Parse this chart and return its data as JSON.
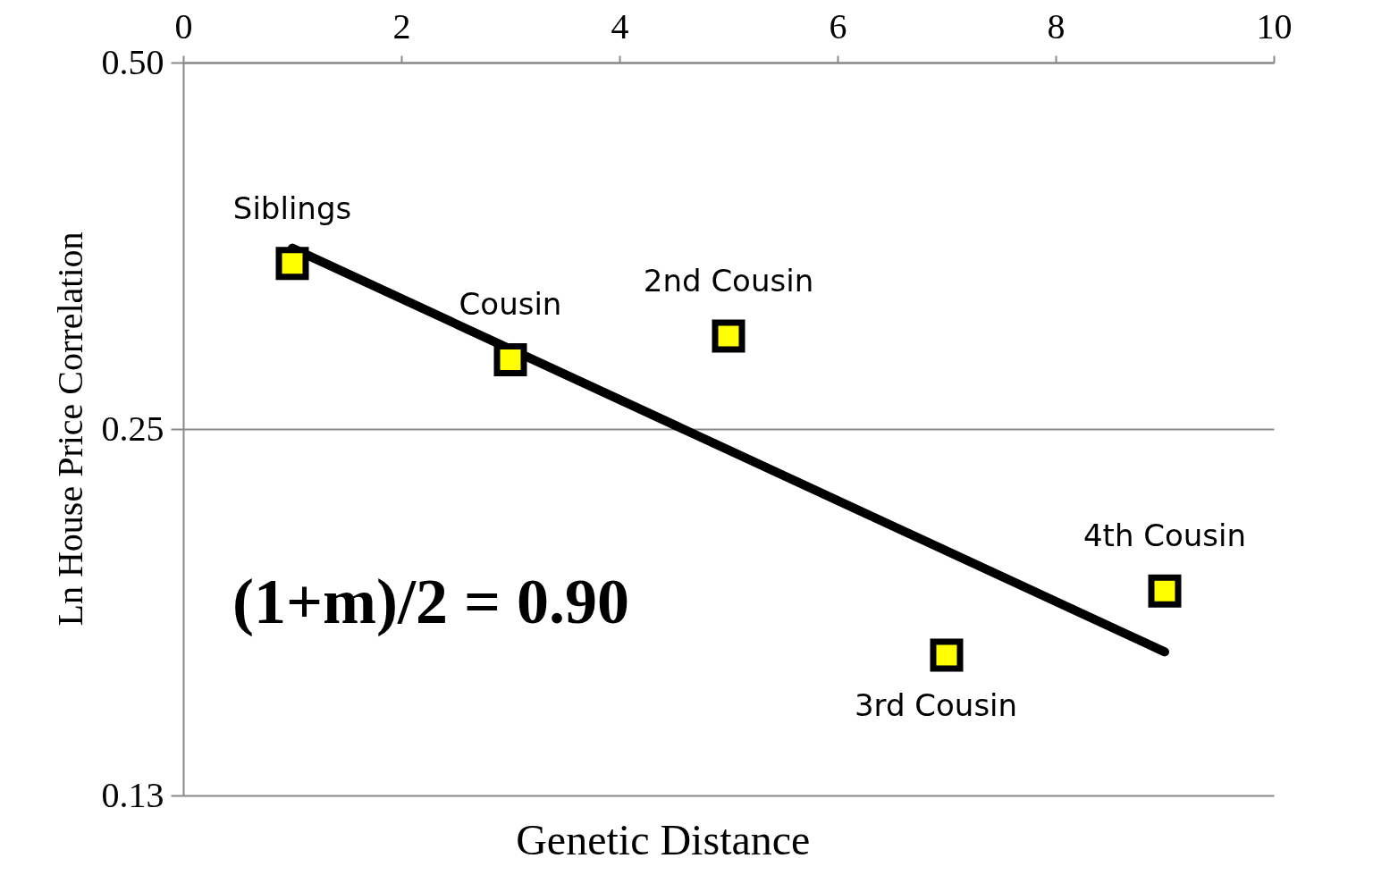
{
  "chart_data": {
    "type": "scatter",
    "xlabel": "Genetic Distance",
    "ylabel": "Ln House Price  Correlation",
    "x": [
      1,
      3,
      5,
      7,
      9
    ],
    "series": [
      {
        "color": "#ffff00",
        "values": [
          0.342,
          0.285,
          0.298,
          0.163,
          0.184
        ]
      },
      {
        "type": "line",
        "color": "#000000",
        "x": [
          1,
          9
        ],
        "values": [
          0.352,
          0.164
        ],
        "marker": "none",
        "line_style": "solid"
      }
    ],
    "annotations": [
      {
        "text": "Siblings",
        "x": 1,
        "y": 0.342
      },
      {
        "text": "Cousin",
        "x": 3,
        "y": 0.285
      },
      {
        "text": "2nd Cousin",
        "x": 5,
        "y": 0.298
      },
      {
        "text": "3rd Cousin",
        "x": 7,
        "y": 0.163
      },
      {
        "text": "4th Cousin",
        "x": 9,
        "y": 0.184
      },
      "(1+m)/2  = 0.90"
    ],
    "xlim": [
      0,
      10
    ],
    "xticks": [
      0,
      2,
      4,
      6,
      8,
      10
    ],
    "ylim": [
      0.125,
      0.5
    ],
    "yticks": [
      {
        "value": 0.125,
        "label": "0.13"
      },
      0.25,
      {
        "value": 0.5,
        "label": "0.50"
      }
    ],
    "log": "y",
    "grid": "y",
    "marker": "square"
  }
}
